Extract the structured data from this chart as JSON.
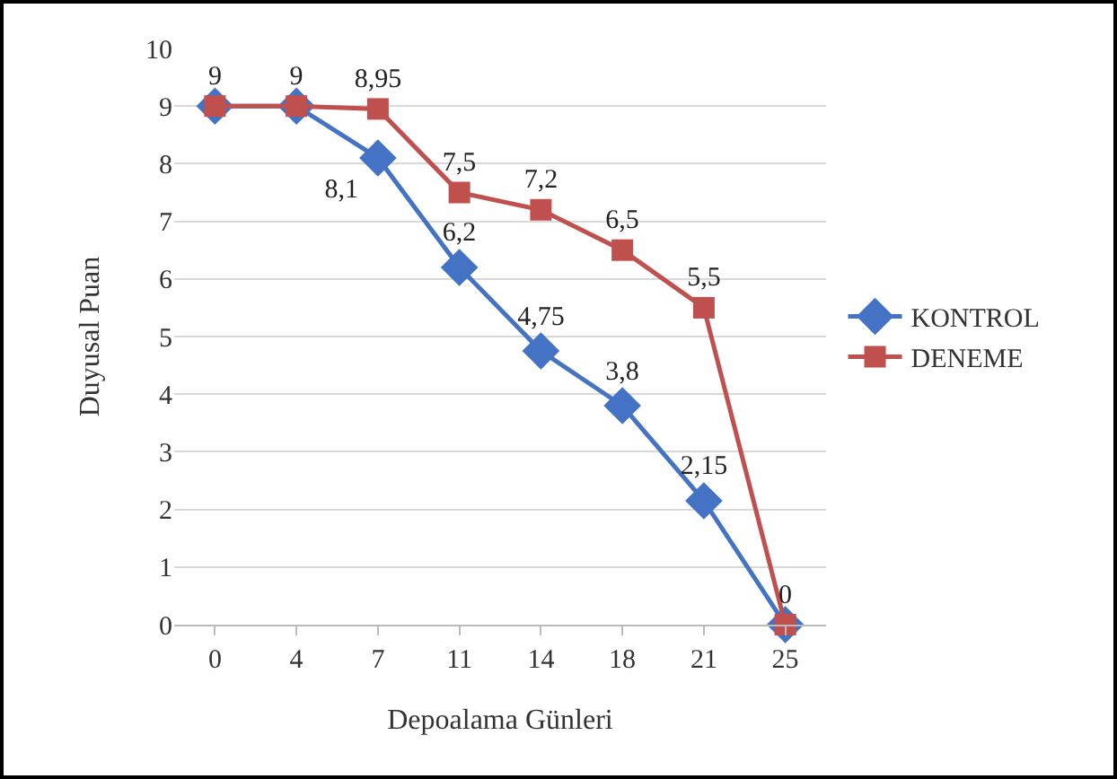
{
  "chart_data": {
    "type": "line",
    "xlabel": "Depoalama Günleri",
    "ylabel": "Duyusal Puan",
    "categories": [
      "0",
      "4",
      "7",
      "11",
      "14",
      "18",
      "21",
      "25"
    ],
    "ylim": [
      0,
      10
    ],
    "yticks": [
      0,
      1,
      2,
      3,
      4,
      5,
      6,
      7,
      8,
      9,
      10
    ],
    "grid": "y",
    "legend": "right",
    "line_style": "solid",
    "series": [
      {
        "name": "KONTROL",
        "color": "#4472c4",
        "marker": "diamond",
        "values": [
          9,
          9,
          8.1,
          6.2,
          4.75,
          3.8,
          2.15,
          0
        ],
        "value_labels": [
          null,
          null,
          "8,1",
          "6,2",
          "4,75",
          "3,8",
          "2,15",
          null
        ]
      },
      {
        "name": "DENEME",
        "color": "#c0504d",
        "marker": "square",
        "values": [
          9,
          9,
          8.95,
          7.5,
          7.2,
          6.5,
          5.5,
          0
        ],
        "value_labels": [
          "9",
          "9",
          "8,95",
          "7,5",
          "7,2",
          "6,5",
          "5,5",
          "0"
        ]
      }
    ]
  }
}
